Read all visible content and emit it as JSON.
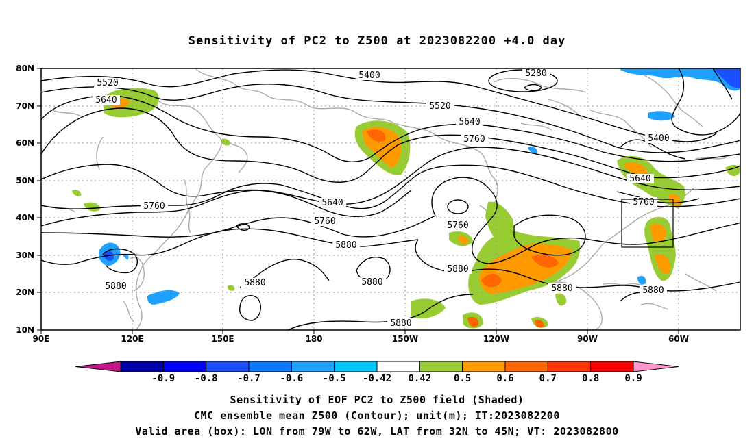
{
  "title": "Sensitivity of PC2 to Z500 at 2023082200 +4.0 day",
  "captions": {
    "line1": "Sensitivity of EOF PC2 to Z500 field (Shaded)",
    "line2": "CMC ensemble mean Z500 (Contour); unit(m); IT:2023082200",
    "line3": "Valid area (box): LON from 79W to 62W, LAT from 32N to 45N; VT: 2023082800"
  },
  "lat_labels": [
    "80N",
    "70N",
    "60N",
    "50N",
    "40N",
    "30N",
    "20N",
    "10N"
  ],
  "lon_labels": [
    "90E",
    "120E",
    "150E",
    "180",
    "150W",
    "120W",
    "90W",
    "60W"
  ],
  "colorbar": {
    "ticks": [
      "-0.9",
      "-0.8",
      "-0.7",
      "-0.6",
      "-0.5",
      "-0.42",
      "0.42",
      "0.5",
      "0.6",
      "0.7",
      "0.8",
      "0.9"
    ],
    "colors": [
      "#c7158a",
      "#0000a8",
      "#0000ff",
      "#1a50ff",
      "#0a78ff",
      "#1ea0ff",
      "#00c8ff",
      "#ffffff",
      "#98cc33",
      "#ff9900",
      "#ff6600",
      "#ff3300",
      "#ff0000",
      "#ff99cc"
    ]
  },
  "contour_labels": [
    {
      "text": "5280"
    },
    {
      "text": "5400"
    },
    {
      "text": "5400"
    },
    {
      "text": "5520"
    },
    {
      "text": "5520"
    },
    {
      "text": "5640"
    },
    {
      "text": "5640"
    },
    {
      "text": "5640"
    },
    {
      "text": "5640"
    },
    {
      "text": "5760"
    },
    {
      "text": "5760"
    },
    {
      "text": "5760"
    },
    {
      "text": "5760"
    },
    {
      "text": "5760"
    },
    {
      "text": "5880"
    },
    {
      "text": "5880"
    },
    {
      "text": "5880"
    },
    {
      "text": "5880"
    },
    {
      "text": "5880"
    },
    {
      "text": "5880"
    },
    {
      "text": "5880"
    },
    {
      "text": "5880"
    }
  ],
  "valid_box": {
    "lon_from": "79W",
    "lon_to": "62W",
    "lat_from": "32N",
    "lat_to": "45N"
  }
}
